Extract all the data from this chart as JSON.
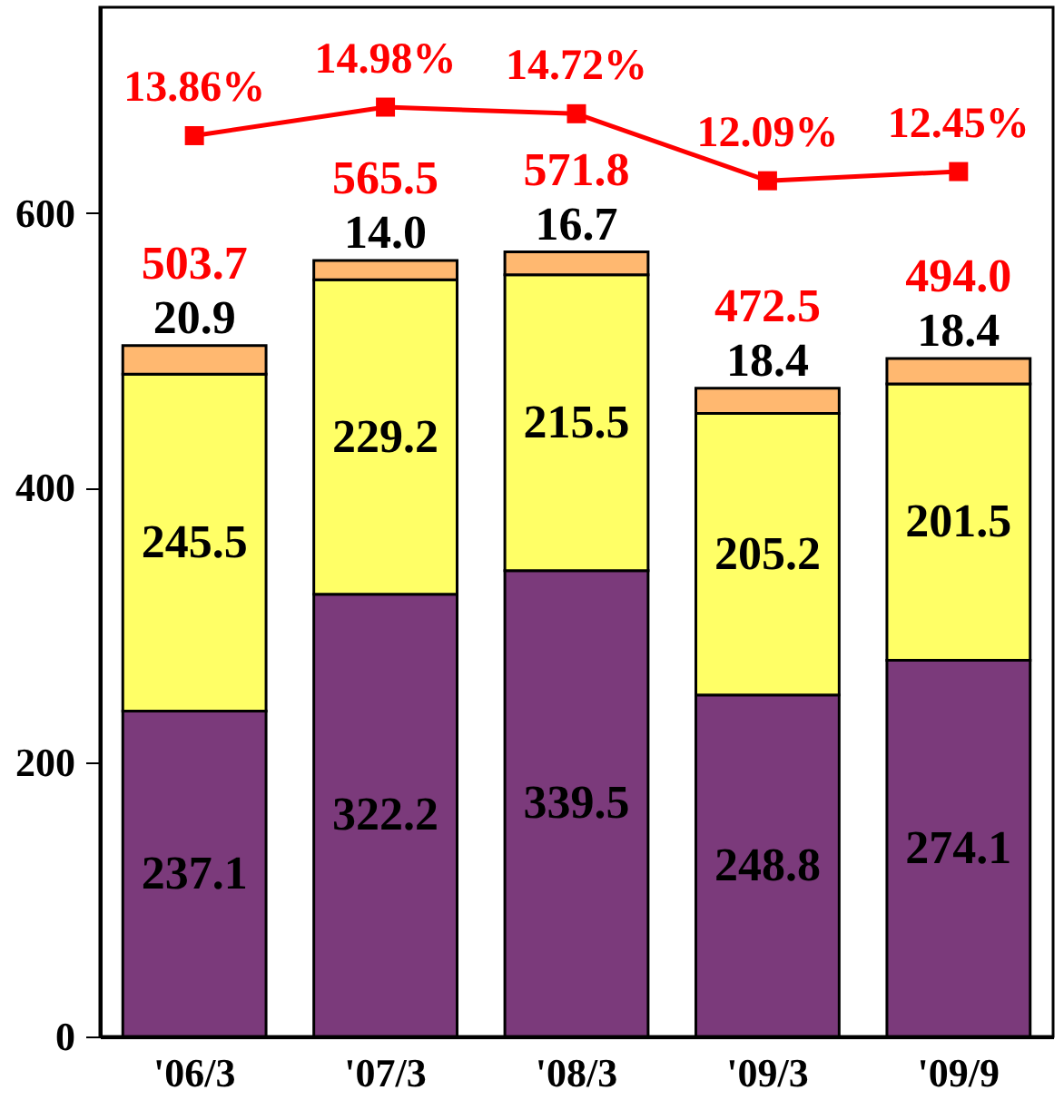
{
  "chart_data": {
    "type": "bar",
    "stacked": true,
    "categories": [
      "'06/3",
      "'07/3",
      "'08/3",
      "'09/3",
      "'09/9"
    ],
    "series": [
      {
        "color": "#7b3a7b",
        "values": [
          237.1,
          322.2,
          339.5,
          248.8,
          274.1
        ],
        "value_labels": [
          "237.1",
          "322.2",
          "339.5",
          "248.8",
          "274.1"
        ]
      },
      {
        "color": "#ffff66",
        "values": [
          245.5,
          229.2,
          215.5,
          205.2,
          201.5
        ],
        "value_labels": [
          "245.5",
          "229.2",
          "215.5",
          "205.2",
          "201.5"
        ]
      },
      {
        "color": "#ffb870",
        "values": [
          20.9,
          14.0,
          16.7,
          18.4,
          18.4
        ],
        "value_labels": [
          "20.9",
          "14.0",
          "16.7",
          "18.4",
          "18.4"
        ]
      },
      {
        "type": "line",
        "axis": "y2",
        "color": "#ff0000",
        "marker": "square",
        "values": [
          13.86,
          14.98,
          14.72,
          12.09,
          12.45
        ],
        "value_labels": [
          "13.86%",
          "14.98%",
          "14.72%",
          "12.09%",
          "12.45%"
        ]
      }
    ],
    "totals": [
      "503.7",
      "565.5",
      "571.8",
      "472.5",
      "494.0"
    ],
    "ylim": [
      0,
      750
    ],
    "yticks": [
      0,
      200,
      400,
      600
    ],
    "y2lim": [
      -21.5,
      18.9
    ],
    "grid": false
  }
}
